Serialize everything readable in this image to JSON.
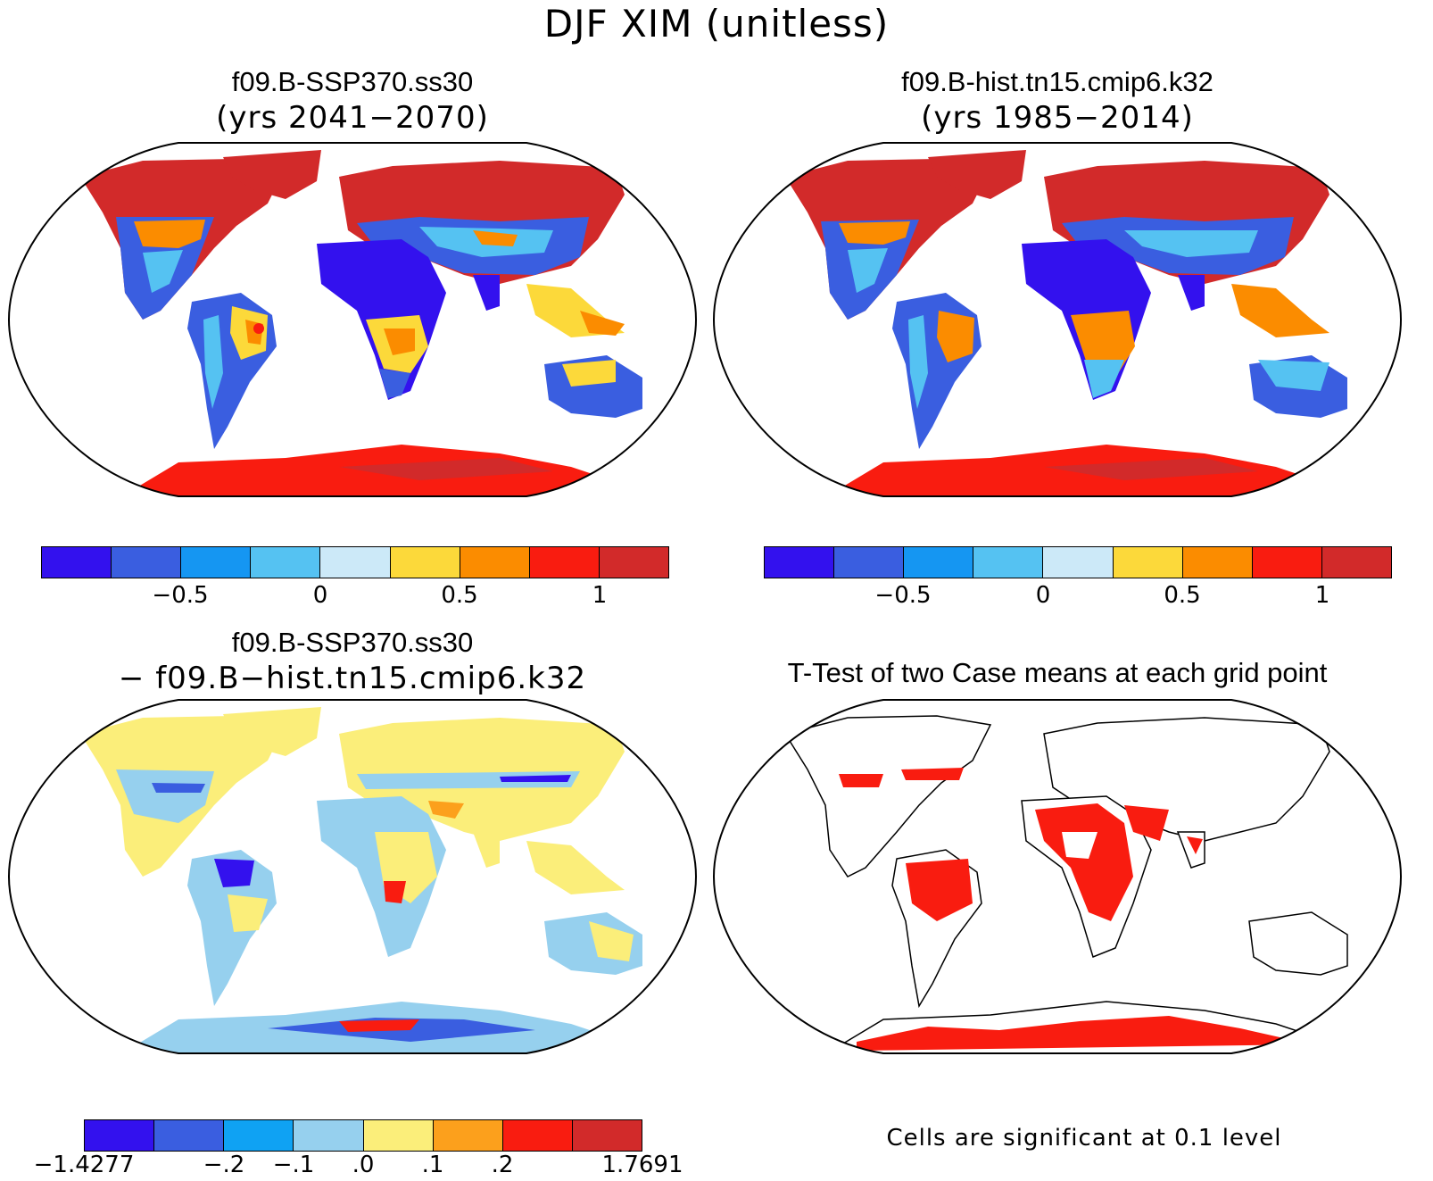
{
  "main_title": "DJF XIM (unitless)",
  "panels": [
    {
      "title": "f09.B-SSP370.ss30",
      "subtitle": "(yrs 2041−2070)"
    },
    {
      "title": "f09.B-hist.tn15.cmip6.k32",
      "subtitle": "(yrs 1985−2014)"
    },
    {
      "title": "f09.B-SSP370.ss30",
      "subtitle": "− f09.B−hist.tn15.cmip6.k32"
    },
    {
      "title": "T-Test of two Case means at each grid point",
      "subtitle": ""
    }
  ],
  "colorbar_main": {
    "colors": [
      "#3311ee",
      "#3a5ee0",
      "#1596f2",
      "#55c2f2",
      "#cce9f8",
      "#fcd93a",
      "#fb8c00",
      "#f91c10",
      "#d22a2a"
    ],
    "ticks": [
      "−0.5",
      "0",
      "0.5",
      "1"
    ]
  },
  "colorbar_diff": {
    "colors": [
      "#3311ee",
      "#3a5ee0",
      "#0fa2f3",
      "#96d0ee",
      "#fbee7a",
      "#fca01c",
      "#f91c10",
      "#d22a2a"
    ],
    "ticks": [
      "−1.4277",
      "−.2",
      "−.1",
      ".0",
      ".1",
      ".2",
      "1.7691"
    ]
  },
  "significance_note": "Cells are significant at 0.1 level",
  "map_fills": {
    "mean_fields": {
      "arctic_north": "#d22a2a",
      "midlat_band": "#3a5ee0",
      "deserts": "#3311ee",
      "tropics": "#55c2f2",
      "savanna": "#fcd93a",
      "monsoon": "#fb8c00",
      "antarctica": "#f91c10"
    },
    "difference": {
      "north": "#fbee7a",
      "band": "#96d0ee",
      "neg_spot": "#3a5ee0",
      "pos_spot": "#f91c10"
    },
    "ttest": {
      "land": "#ffffff",
      "significant": "#f91c10"
    }
  }
}
